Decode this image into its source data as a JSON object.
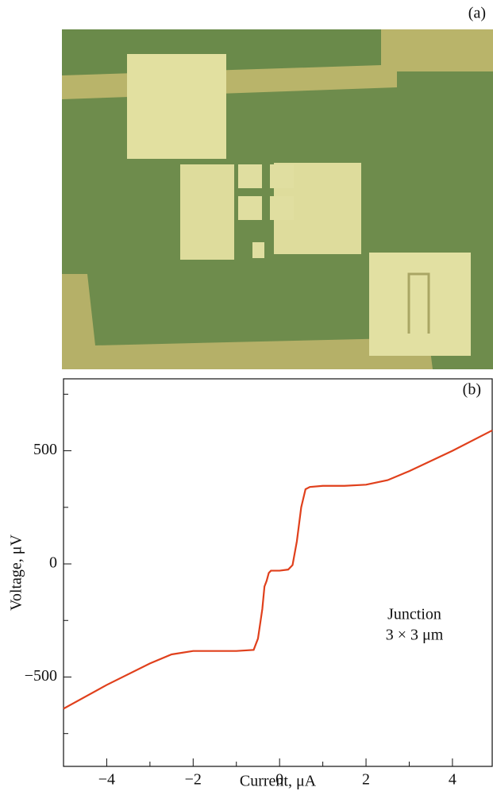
{
  "photo": {
    "label": "(a)"
  },
  "chart_data": {
    "type": "line",
    "panel_label": "(b)",
    "x_label": "Current, μA",
    "y_label": "Voltage, μV",
    "annotations": [
      "Junction",
      "3 × 3 μm"
    ],
    "color": "#e0401c",
    "x": [
      -5,
      -4,
      -3,
      -2.5,
      -2,
      -1.5,
      -1,
      -0.6,
      -0.5,
      -0.4,
      -0.35,
      -0.3,
      -0.25,
      -0.2,
      0,
      0.2,
      0.3,
      0.4,
      0.5,
      0.6,
      0.7,
      1,
      1.5,
      2,
      2.5,
      3,
      4,
      4.92
    ],
    "values": [
      -640,
      -535,
      -440,
      -400,
      -385,
      -385,
      -385,
      -380,
      -330,
      -200,
      -100,
      -75,
      -40,
      -30,
      -30,
      -25,
      -5,
      100,
      250,
      330,
      340,
      345,
      345,
      350,
      370,
      410,
      500,
      590
    ],
    "xlim": [
      -5,
      4.92
    ],
    "ylim": [
      -895,
      818
    ],
    "xticks": [
      {
        "value": -4,
        "label": "−4"
      },
      {
        "value": -2,
        "label": "−2"
      },
      0,
      2,
      4
    ],
    "xminorticks": [
      -5,
      -3,
      -1,
      1,
      3
    ],
    "yticks": [
      {
        "value": -500,
        "label": "−500"
      },
      0,
      500
    ],
    "yminorticks": [
      -750,
      -250,
      250,
      750
    ]
  }
}
